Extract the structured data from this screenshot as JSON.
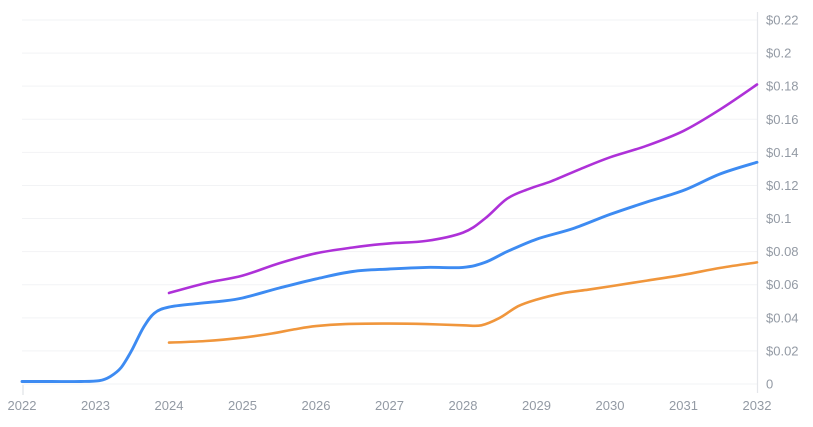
{
  "chart": {
    "background_color": "#ffffff",
    "grid_color": "#f2f3f5",
    "axis_line_color": "#e4e6ea",
    "tick_color": "#d9dde2",
    "label_color": "#939aa4",
    "legend": "none",
    "title": ""
  },
  "chart_data": {
    "type": "line",
    "title": "",
    "xlabel": "",
    "ylabel": "",
    "x_range": [
      2022,
      2032
    ],
    "y_range": [
      0,
      0.22
    ],
    "y_tick_step": 0.02,
    "grid": "horizontal-only",
    "legend_position": "none",
    "y_axis_side": "right",
    "x_ticks": [
      {
        "value": 2022,
        "label": "2022"
      },
      {
        "value": 2023,
        "label": "2023"
      },
      {
        "value": 2024,
        "label": "2024"
      },
      {
        "value": 2025,
        "label": "2025"
      },
      {
        "value": 2026,
        "label": "2026"
      },
      {
        "value": 2027,
        "label": "2027"
      },
      {
        "value": 2028,
        "label": "2028"
      },
      {
        "value": 2029,
        "label": "2029"
      },
      {
        "value": 2030,
        "label": "2030"
      },
      {
        "value": 2031,
        "label": "2031"
      },
      {
        "value": 2032,
        "label": "2032"
      }
    ],
    "y_ticks": [
      {
        "value": 0,
        "label": "0"
      },
      {
        "value": 0.02,
        "label": "$0.02"
      },
      {
        "value": 0.04,
        "label": "$0.04"
      },
      {
        "value": 0.06,
        "label": "$0.06"
      },
      {
        "value": 0.08,
        "label": "$0.08"
      },
      {
        "value": 0.1,
        "label": "$0.1"
      },
      {
        "value": 0.12,
        "label": "$0.12"
      },
      {
        "value": 0.14,
        "label": "$0.14"
      },
      {
        "value": 0.16,
        "label": "$0.16"
      },
      {
        "value": 0.18,
        "label": "$0.18"
      },
      {
        "value": 0.2,
        "label": "$0.2"
      },
      {
        "value": 0.22,
        "label": "$0.22"
      }
    ],
    "series": [
      {
        "name": "blue",
        "color": "#3d8bf2",
        "stroke_width": 2.9,
        "points": [
          [
            2022.0,
            0.0015
          ],
          [
            2022.4,
            0.0015
          ],
          [
            2022.8,
            0.0015
          ],
          [
            2023.05,
            0.002
          ],
          [
            2023.2,
            0.0045
          ],
          [
            2023.35,
            0.01
          ],
          [
            2023.5,
            0.021
          ],
          [
            2023.65,
            0.034
          ],
          [
            2023.8,
            0.0428
          ],
          [
            2024.0,
            0.0465
          ],
          [
            2024.35,
            0.0485
          ],
          [
            2024.7,
            0.05
          ],
          [
            2025.0,
            0.052
          ],
          [
            2025.5,
            0.058
          ],
          [
            2026.0,
            0.0635
          ],
          [
            2026.5,
            0.068
          ],
          [
            2027.0,
            0.0695
          ],
          [
            2027.5,
            0.0705
          ],
          [
            2028.0,
            0.0705
          ],
          [
            2028.3,
            0.0735
          ],
          [
            2028.6,
            0.08
          ],
          [
            2029.0,
            0.0875
          ],
          [
            2029.5,
            0.094
          ],
          [
            2030.0,
            0.1025
          ],
          [
            2030.5,
            0.11
          ],
          [
            2031.0,
            0.117
          ],
          [
            2031.5,
            0.127
          ],
          [
            2032.0,
            0.134
          ]
        ]
      },
      {
        "name": "orange",
        "color": "#f0963c",
        "stroke_width": 2.6,
        "points": [
          [
            2024.0,
            0.025
          ],
          [
            2024.5,
            0.026
          ],
          [
            2025.0,
            0.028
          ],
          [
            2025.4,
            0.0305
          ],
          [
            2025.7,
            0.033
          ],
          [
            2026.0,
            0.035
          ],
          [
            2026.4,
            0.0362
          ],
          [
            2027.0,
            0.0365
          ],
          [
            2027.5,
            0.0362
          ],
          [
            2028.0,
            0.0355
          ],
          [
            2028.25,
            0.0355
          ],
          [
            2028.5,
            0.04
          ],
          [
            2028.75,
            0.047
          ],
          [
            2029.0,
            0.051
          ],
          [
            2029.35,
            0.0548
          ],
          [
            2029.7,
            0.057
          ],
          [
            2030.0,
            0.059
          ],
          [
            2030.5,
            0.0625
          ],
          [
            2031.0,
            0.066
          ],
          [
            2031.5,
            0.0702
          ],
          [
            2032.0,
            0.0735
          ]
        ]
      },
      {
        "name": "purple",
        "color": "#ae31d8",
        "stroke_width": 2.6,
        "points": [
          [
            2024.0,
            0.055
          ],
          [
            2024.5,
            0.061
          ],
          [
            2025.0,
            0.0655
          ],
          [
            2025.5,
            0.073
          ],
          [
            2026.0,
            0.079
          ],
          [
            2026.5,
            0.0825
          ],
          [
            2027.0,
            0.085
          ],
          [
            2027.5,
            0.0865
          ],
          [
            2028.0,
            0.0915
          ],
          [
            2028.3,
            0.1
          ],
          [
            2028.6,
            0.112
          ],
          [
            2028.9,
            0.118
          ],
          [
            2029.2,
            0.1225
          ],
          [
            2029.6,
            0.13
          ],
          [
            2030.0,
            0.137
          ],
          [
            2030.5,
            0.144
          ],
          [
            2031.0,
            0.153
          ],
          [
            2031.5,
            0.166
          ],
          [
            2032.0,
            0.181
          ]
        ]
      }
    ]
  }
}
